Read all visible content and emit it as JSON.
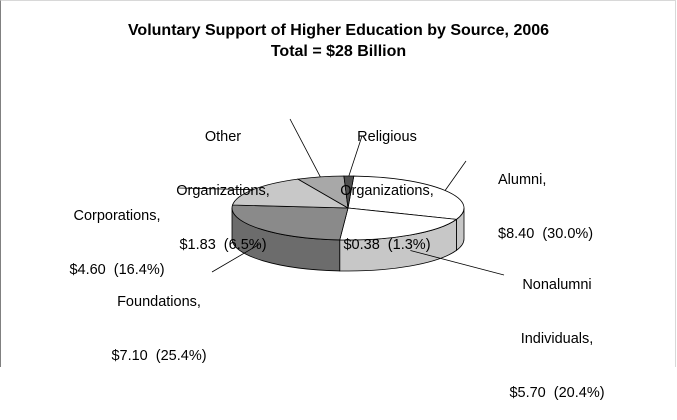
{
  "chart_data": {
    "type": "pie",
    "title": "Voluntary Support of Higher Education by Source, 2006",
    "subtitle": "Total = $28 Billion",
    "slices": [
      {
        "label_lines": [
          "Alumni,",
          "$8.40  (30.0%)"
        ],
        "value": 8.4,
        "percent": 30.0,
        "color": "#ffffff"
      },
      {
        "label_lines": [
          "Nonalumni",
          "Individuals,",
          "$5.70  (20.4%)"
        ],
        "value": 5.7,
        "percent": 20.4,
        "color": "#ffffff"
      },
      {
        "label_lines": [
          "Foundations,",
          "$7.10  (25.4%)"
        ],
        "value": 7.1,
        "percent": 25.4,
        "color": "#8a8a8a"
      },
      {
        "label_lines": [
          "Corporations,",
          "$4.60  (16.4%)"
        ],
        "value": 4.6,
        "percent": 16.4,
        "color": "#c8c8c8"
      },
      {
        "label_lines": [
          "Other",
          "Organizations,",
          "$1.83  (6.5%)"
        ],
        "value": 1.83,
        "percent": 6.5,
        "color": "#a8a8a8"
      },
      {
        "label_lines": [
          "Religious",
          "Organizations,",
          "$0.38  (1.3%)"
        ],
        "value": 0.38,
        "percent": 1.3,
        "color": "#505050"
      }
    ]
  }
}
